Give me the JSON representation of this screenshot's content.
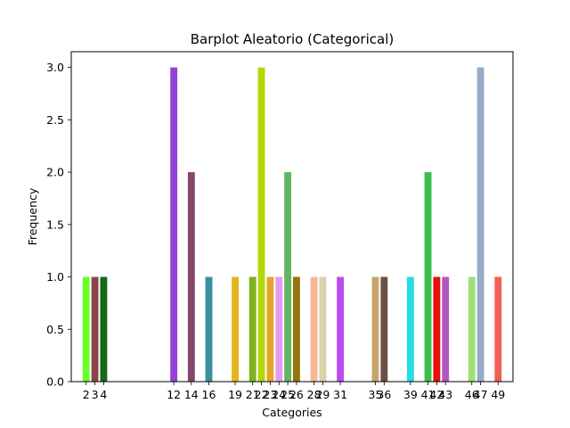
{
  "chart_data": {
    "type": "bar",
    "title": "Barplot Aleatorio (Categorical)",
    "xlabel": "Categories",
    "ylabel": "Frequency",
    "ylim": [
      0,
      3.15
    ],
    "yticks": [
      "0.0",
      "0.5",
      "1.0",
      "1.5",
      "2.0",
      "2.5",
      "3.0"
    ],
    "grid": false,
    "bars": [
      {
        "category": "2",
        "value": 1,
        "color": "#6bff2a"
      },
      {
        "category": "3",
        "value": 1,
        "color": "#8b4448"
      },
      {
        "category": "4",
        "value": 1,
        "color": "#17691a"
      },
      {
        "category": "12",
        "value": 3,
        "color": "#9540d8"
      },
      {
        "category": "14",
        "value": 2,
        "color": "#83486c"
      },
      {
        "category": "16",
        "value": 1,
        "color": "#3a8fa0"
      },
      {
        "category": "19",
        "value": 1,
        "color": "#e6b41a"
      },
      {
        "category": "21",
        "value": 1,
        "color": "#7fb21c"
      },
      {
        "category": "22",
        "value": 3,
        "color": "#b2d800"
      },
      {
        "category": "23",
        "value": 1,
        "color": "#e3a62a"
      },
      {
        "category": "24",
        "value": 1,
        "color": "#e79af0"
      },
      {
        "category": "25",
        "value": 2,
        "color": "#63b563"
      },
      {
        "category": "26",
        "value": 1,
        "color": "#93740d"
      },
      {
        "category": "28",
        "value": 1,
        "color": "#f5b896"
      },
      {
        "category": "29",
        "value": 1,
        "color": "#dcd0a8"
      },
      {
        "category": "31",
        "value": 1,
        "color": "#bc4cf0"
      },
      {
        "category": "35",
        "value": 1,
        "color": "#c7a46c"
      },
      {
        "category": "36",
        "value": 1,
        "color": "#6b5045"
      },
      {
        "category": "39",
        "value": 1,
        "color": "#23dde1"
      },
      {
        "category": "41",
        "value": 2,
        "color": "#38bf4d"
      },
      {
        "category": "42",
        "value": 1,
        "color": "#e80e0e"
      },
      {
        "category": "43",
        "value": 1,
        "color": "#b257c2"
      },
      {
        "category": "46",
        "value": 1,
        "color": "#9fe079"
      },
      {
        "category": "47",
        "value": 3,
        "color": "#99a9c8"
      },
      {
        "category": "49",
        "value": 1,
        "color": "#f25d55"
      }
    ]
  }
}
